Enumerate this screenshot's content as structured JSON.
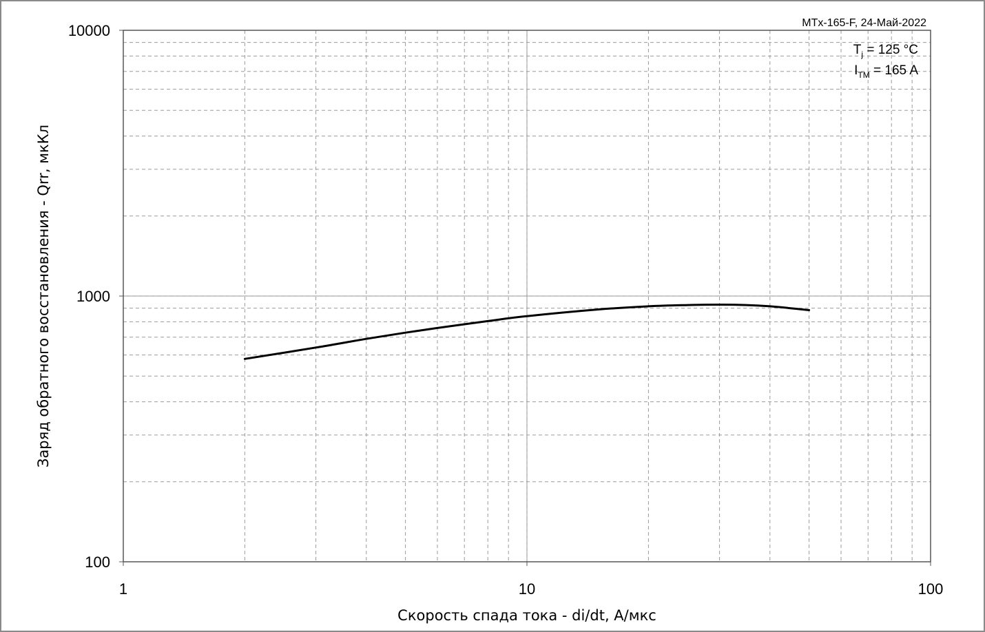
{
  "chart_data": {
    "type": "line",
    "title": "",
    "stamp": "MTx-165-F, 24-Май-2022",
    "conditions": {
      "tj_symbol": "T",
      "tj_sub": "j",
      "tj_value": " = 125 °C",
      "itm_symbol": "I",
      "itm_sub": "TM",
      "itm_value": " = 165 A"
    },
    "xlabel": "Скорость спада тока - di/dt, А/мкс",
    "ylabel": "Заряд обратного восстановления - Qrr, мкКл",
    "x_scale": "log",
    "y_scale": "log",
    "xlim": [
      1,
      100
    ],
    "ylim": [
      100,
      10000
    ],
    "x_ticks": [
      "1",
      "10",
      "100"
    ],
    "y_ticks": [
      "100",
      "1000",
      "10000"
    ],
    "grid": true,
    "series": [
      {
        "name": "",
        "color": "#000000",
        "x": [
          2,
          3,
          4,
          5,
          6,
          8,
          10,
          15,
          20,
          25,
          30,
          35,
          40,
          45,
          50
        ],
        "y": [
          580,
          640,
          690,
          728,
          758,
          805,
          840,
          890,
          915,
          925,
          928,
          925,
          915,
          900,
          885
        ]
      }
    ]
  }
}
